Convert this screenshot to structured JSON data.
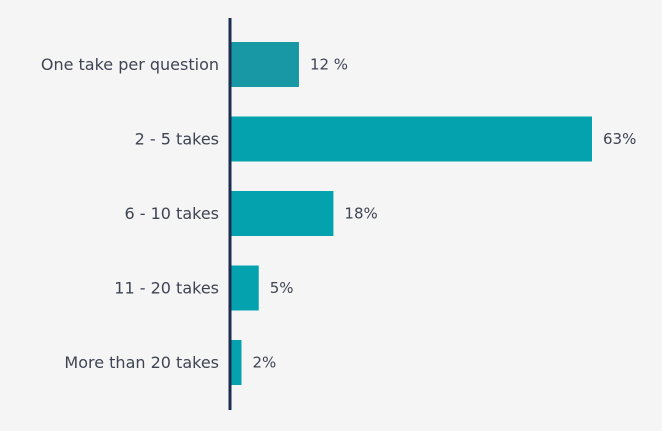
{
  "chart_data": {
    "type": "bar",
    "orientation": "horizontal",
    "categories": [
      "One take per question",
      "2 - 5 takes",
      "6 - 10 takes",
      "11 - 20 takes",
      "More than 20 takes"
    ],
    "values": [
      12,
      63,
      18,
      5,
      2
    ],
    "value_labels": [
      "12 %",
      "63%",
      "18%",
      "5%",
      "2%"
    ],
    "value_unit": "%",
    "title": "",
    "xlabel": "",
    "ylabel": "",
    "xlim": [
      0,
      63
    ],
    "grid": false,
    "legend": "none",
    "colors": {
      "bars": [
        "#1897a5",
        "#03a2ae",
        "#03a2ae",
        "#03a2ae",
        "#03a2ae"
      ],
      "axis": "#1d2d4f",
      "text": "#3e4452",
      "background": "#f5f5f6"
    }
  }
}
